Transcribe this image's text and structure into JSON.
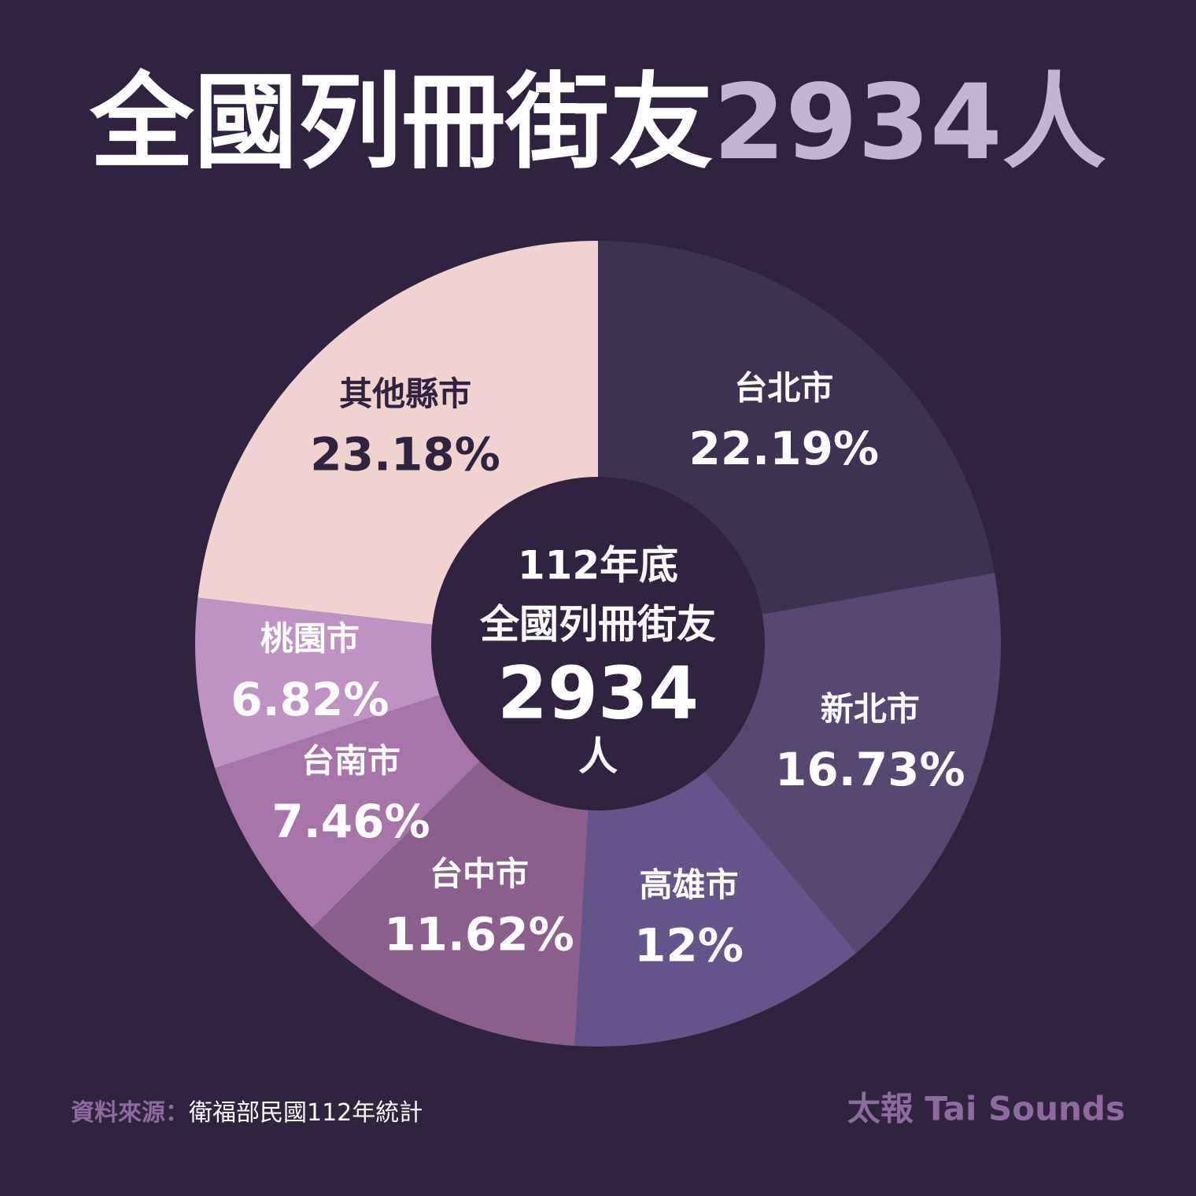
{
  "chart_data": {
    "type": "pie",
    "title": "全國列冊街友",
    "title_highlight": "2934人",
    "center_lines": [
      "112年底",
      "全國列冊街友",
      "2934",
      "人"
    ],
    "categories": [
      "台北市",
      "新北市",
      "高雄市",
      "台中市",
      "台南市",
      "桃園市",
      "其他縣市"
    ],
    "values": [
      22.19,
      16.73,
      12,
      11.62,
      7.46,
      6.82,
      23.18
    ],
    "value_labels": [
      "22.19%",
      "16.73%",
      "12%",
      "11.62%",
      "7.46%",
      "6.82%",
      "23.18%"
    ],
    "colors": [
      "#3d3252",
      "#574872",
      "#64548a",
      "#8a5f8c",
      "#a674a8",
      "#bf92c4",
      "#f0d3d1"
    ],
    "source_label": "資料來源：",
    "source": "衛福部民國112年統計",
    "brand": "太報 Tai Sounds"
  }
}
